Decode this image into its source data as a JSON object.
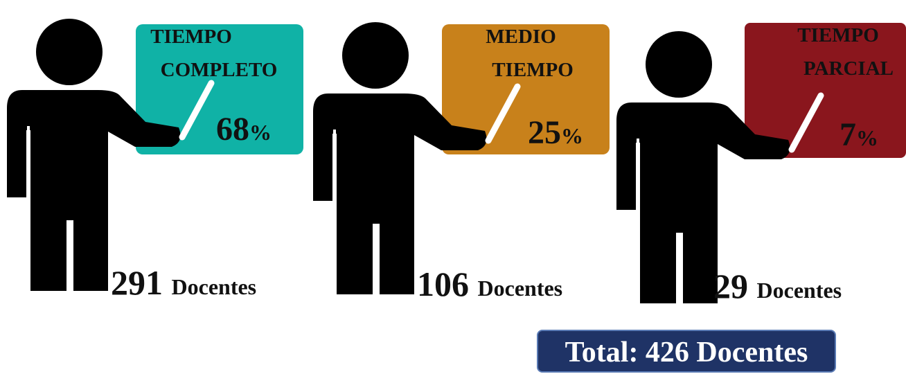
{
  "groups": [
    {
      "label_lines": [
        "TIEMPO",
        "COMPLETO"
      ],
      "percent": {
        "value": "68",
        "unit": "%"
      },
      "count": {
        "number": "291",
        "unit": "Docentes"
      }
    },
    {
      "label_lines": [
        "MEDIO",
        "TIEMPO"
      ],
      "percent": {
        "value": "25",
        "unit": "%"
      },
      "count": {
        "number": "106",
        "unit": "Docentes"
      }
    },
    {
      "label_lines": [
        "TIEMPO",
        "PARCIAL"
      ],
      "percent": {
        "value": "7",
        "unit": "%"
      },
      "count": {
        "number": "29",
        "unit": "Docentes"
      }
    }
  ],
  "total": "Total: 426 Docentes"
}
